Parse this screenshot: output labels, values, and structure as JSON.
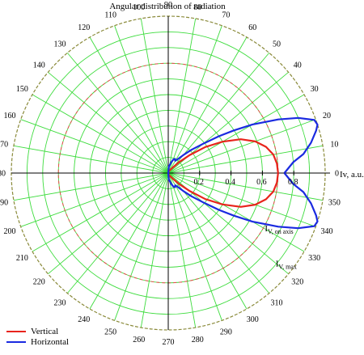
{
  "chart_data": {
    "type": "polar-line",
    "title": "Angular distribution of radiation",
    "radial_axis_label": "Iv, a.u.",
    "radial_range": [
      0,
      1
    ],
    "radial_ticks": [
      0.2,
      0.4,
      0.6,
      0.8
    ],
    "radial_tick_labels": [
      "0.2",
      "0.4",
      "0.6",
      "0.8"
    ],
    "angle_ticks_deg": [
      0,
      10,
      20,
      30,
      40,
      50,
      60,
      70,
      80,
      90,
      100,
      110,
      120,
      130,
      140,
      150,
      160,
      170,
      180,
      190,
      200,
      210,
      220,
      230,
      240,
      250,
      260,
      270,
      280,
      290,
      300,
      310,
      320,
      330,
      340,
      350
    ],
    "angle_tick_labels": [
      "0",
      "10",
      "20",
      "30",
      "40",
      "50",
      "60",
      "70",
      "80",
      "90",
      "100",
      "110",
      "120",
      "130",
      "140",
      "150",
      "160",
      "170",
      "180",
      "190",
      "200",
      "210",
      "220",
      "230",
      "240",
      "250",
      "260",
      "270",
      "280",
      "290",
      "300",
      "310",
      "320",
      "330",
      "340",
      "350"
    ],
    "grid": true,
    "reference_circles": [
      {
        "label_main": "I",
        "label_sub": "V, on axis",
        "value": 0.7
      },
      {
        "label_main": "I",
        "label_sub": "V, max",
        "value": 1.0
      }
    ],
    "series": [
      {
        "name": "Vertical",
        "color": "#e8241c",
        "points": [
          [
            0,
            0.7
          ],
          [
            5,
            0.695
          ],
          [
            10,
            0.68
          ],
          [
            15,
            0.645
          ],
          [
            20,
            0.59
          ],
          [
            25,
            0.51
          ],
          [
            30,
            0.4
          ],
          [
            35,
            0.29
          ],
          [
            40,
            0.18
          ],
          [
            45,
            0.1
          ],
          [
            50,
            0.05
          ],
          [
            60,
            0.02
          ],
          [
            80,
            0.01
          ],
          [
            90,
            0.0
          ],
          [
            270,
            0.0
          ],
          [
            280,
            0.01
          ],
          [
            300,
            0.02
          ],
          [
            310,
            0.05
          ],
          [
            315,
            0.1
          ],
          [
            320,
            0.18
          ],
          [
            325,
            0.29
          ],
          [
            330,
            0.4
          ],
          [
            335,
            0.51
          ],
          [
            340,
            0.59
          ],
          [
            345,
            0.645
          ],
          [
            350,
            0.68
          ],
          [
            355,
            0.695
          ],
          [
            360,
            0.7
          ]
        ]
      },
      {
        "name": "Horizontal",
        "color": "#1a2ae0",
        "points": [
          [
            0,
            0.74
          ],
          [
            5,
            0.8
          ],
          [
            8,
            0.87
          ],
          [
            12,
            0.93
          ],
          [
            16,
            0.98
          ],
          [
            18,
            1.0
          ],
          [
            20,
            0.99
          ],
          [
            23,
            0.9
          ],
          [
            26,
            0.78
          ],
          [
            30,
            0.62
          ],
          [
            33,
            0.5
          ],
          [
            36,
            0.4
          ],
          [
            40,
            0.29
          ],
          [
            45,
            0.21
          ],
          [
            50,
            0.15
          ],
          [
            55,
            0.11
          ],
          [
            60,
            0.09
          ],
          [
            65,
            0.1
          ],
          [
            70,
            0.09
          ],
          [
            75,
            0.07
          ],
          [
            85,
            0.04
          ],
          [
            90,
            0.0
          ],
          [
            270,
            0.0
          ],
          [
            275,
            0.04
          ],
          [
            285,
            0.07
          ],
          [
            290,
            0.09
          ],
          [
            295,
            0.1
          ],
          [
            300,
            0.09
          ],
          [
            305,
            0.11
          ],
          [
            310,
            0.15
          ],
          [
            315,
            0.21
          ],
          [
            320,
            0.29
          ],
          [
            324,
            0.4
          ],
          [
            327,
            0.5
          ],
          [
            330,
            0.62
          ],
          [
            334,
            0.78
          ],
          [
            337,
            0.9
          ],
          [
            340,
            0.99
          ],
          [
            342,
            1.0
          ],
          [
            344,
            0.98
          ],
          [
            348,
            0.93
          ],
          [
            352,
            0.87
          ],
          [
            355,
            0.8
          ],
          [
            360,
            0.74
          ]
        ]
      }
    ]
  },
  "colors": {
    "grid": "#3ddc3d",
    "outer_circle": "#8a8a3a",
    "reference": "#e84a4a",
    "axes": "#000000"
  }
}
